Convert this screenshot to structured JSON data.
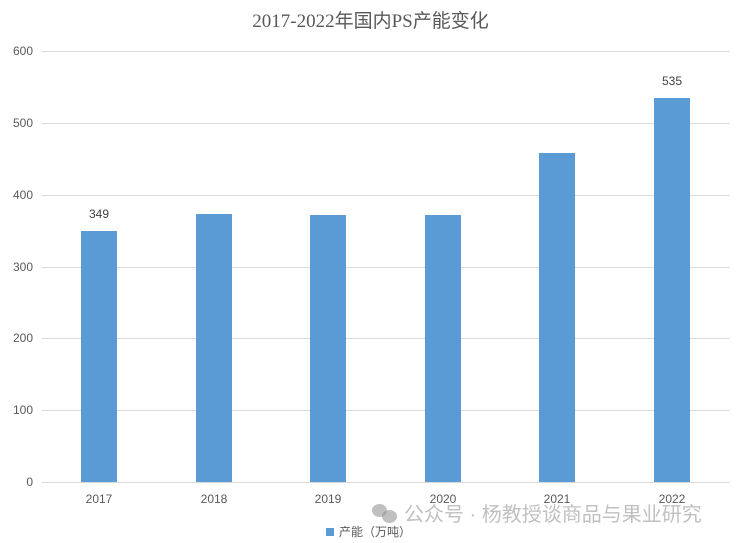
{
  "chart_data": {
    "type": "bar",
    "title": "2017-2022年国内PS产能变化",
    "xlabel": "",
    "ylabel": "",
    "categories": [
      "2017",
      "2018",
      "2019",
      "2020",
      "2021",
      "2022"
    ],
    "series": [
      {
        "name": "产能（万吨）",
        "values": [
          349,
          373,
          372,
          372,
          458,
          535
        ],
        "color": "#5b9bd5"
      }
    ],
    "data_labels": {
      "2017": "349",
      "2022": "535"
    },
    "ylim": [
      0,
      600
    ],
    "yticks": [
      "0",
      "100",
      "200",
      "300",
      "400",
      "500",
      "600"
    ],
    "grid": true,
    "legend_position": "bottom"
  },
  "watermark": "公众号 · 杨教授谈商品与果业研究"
}
